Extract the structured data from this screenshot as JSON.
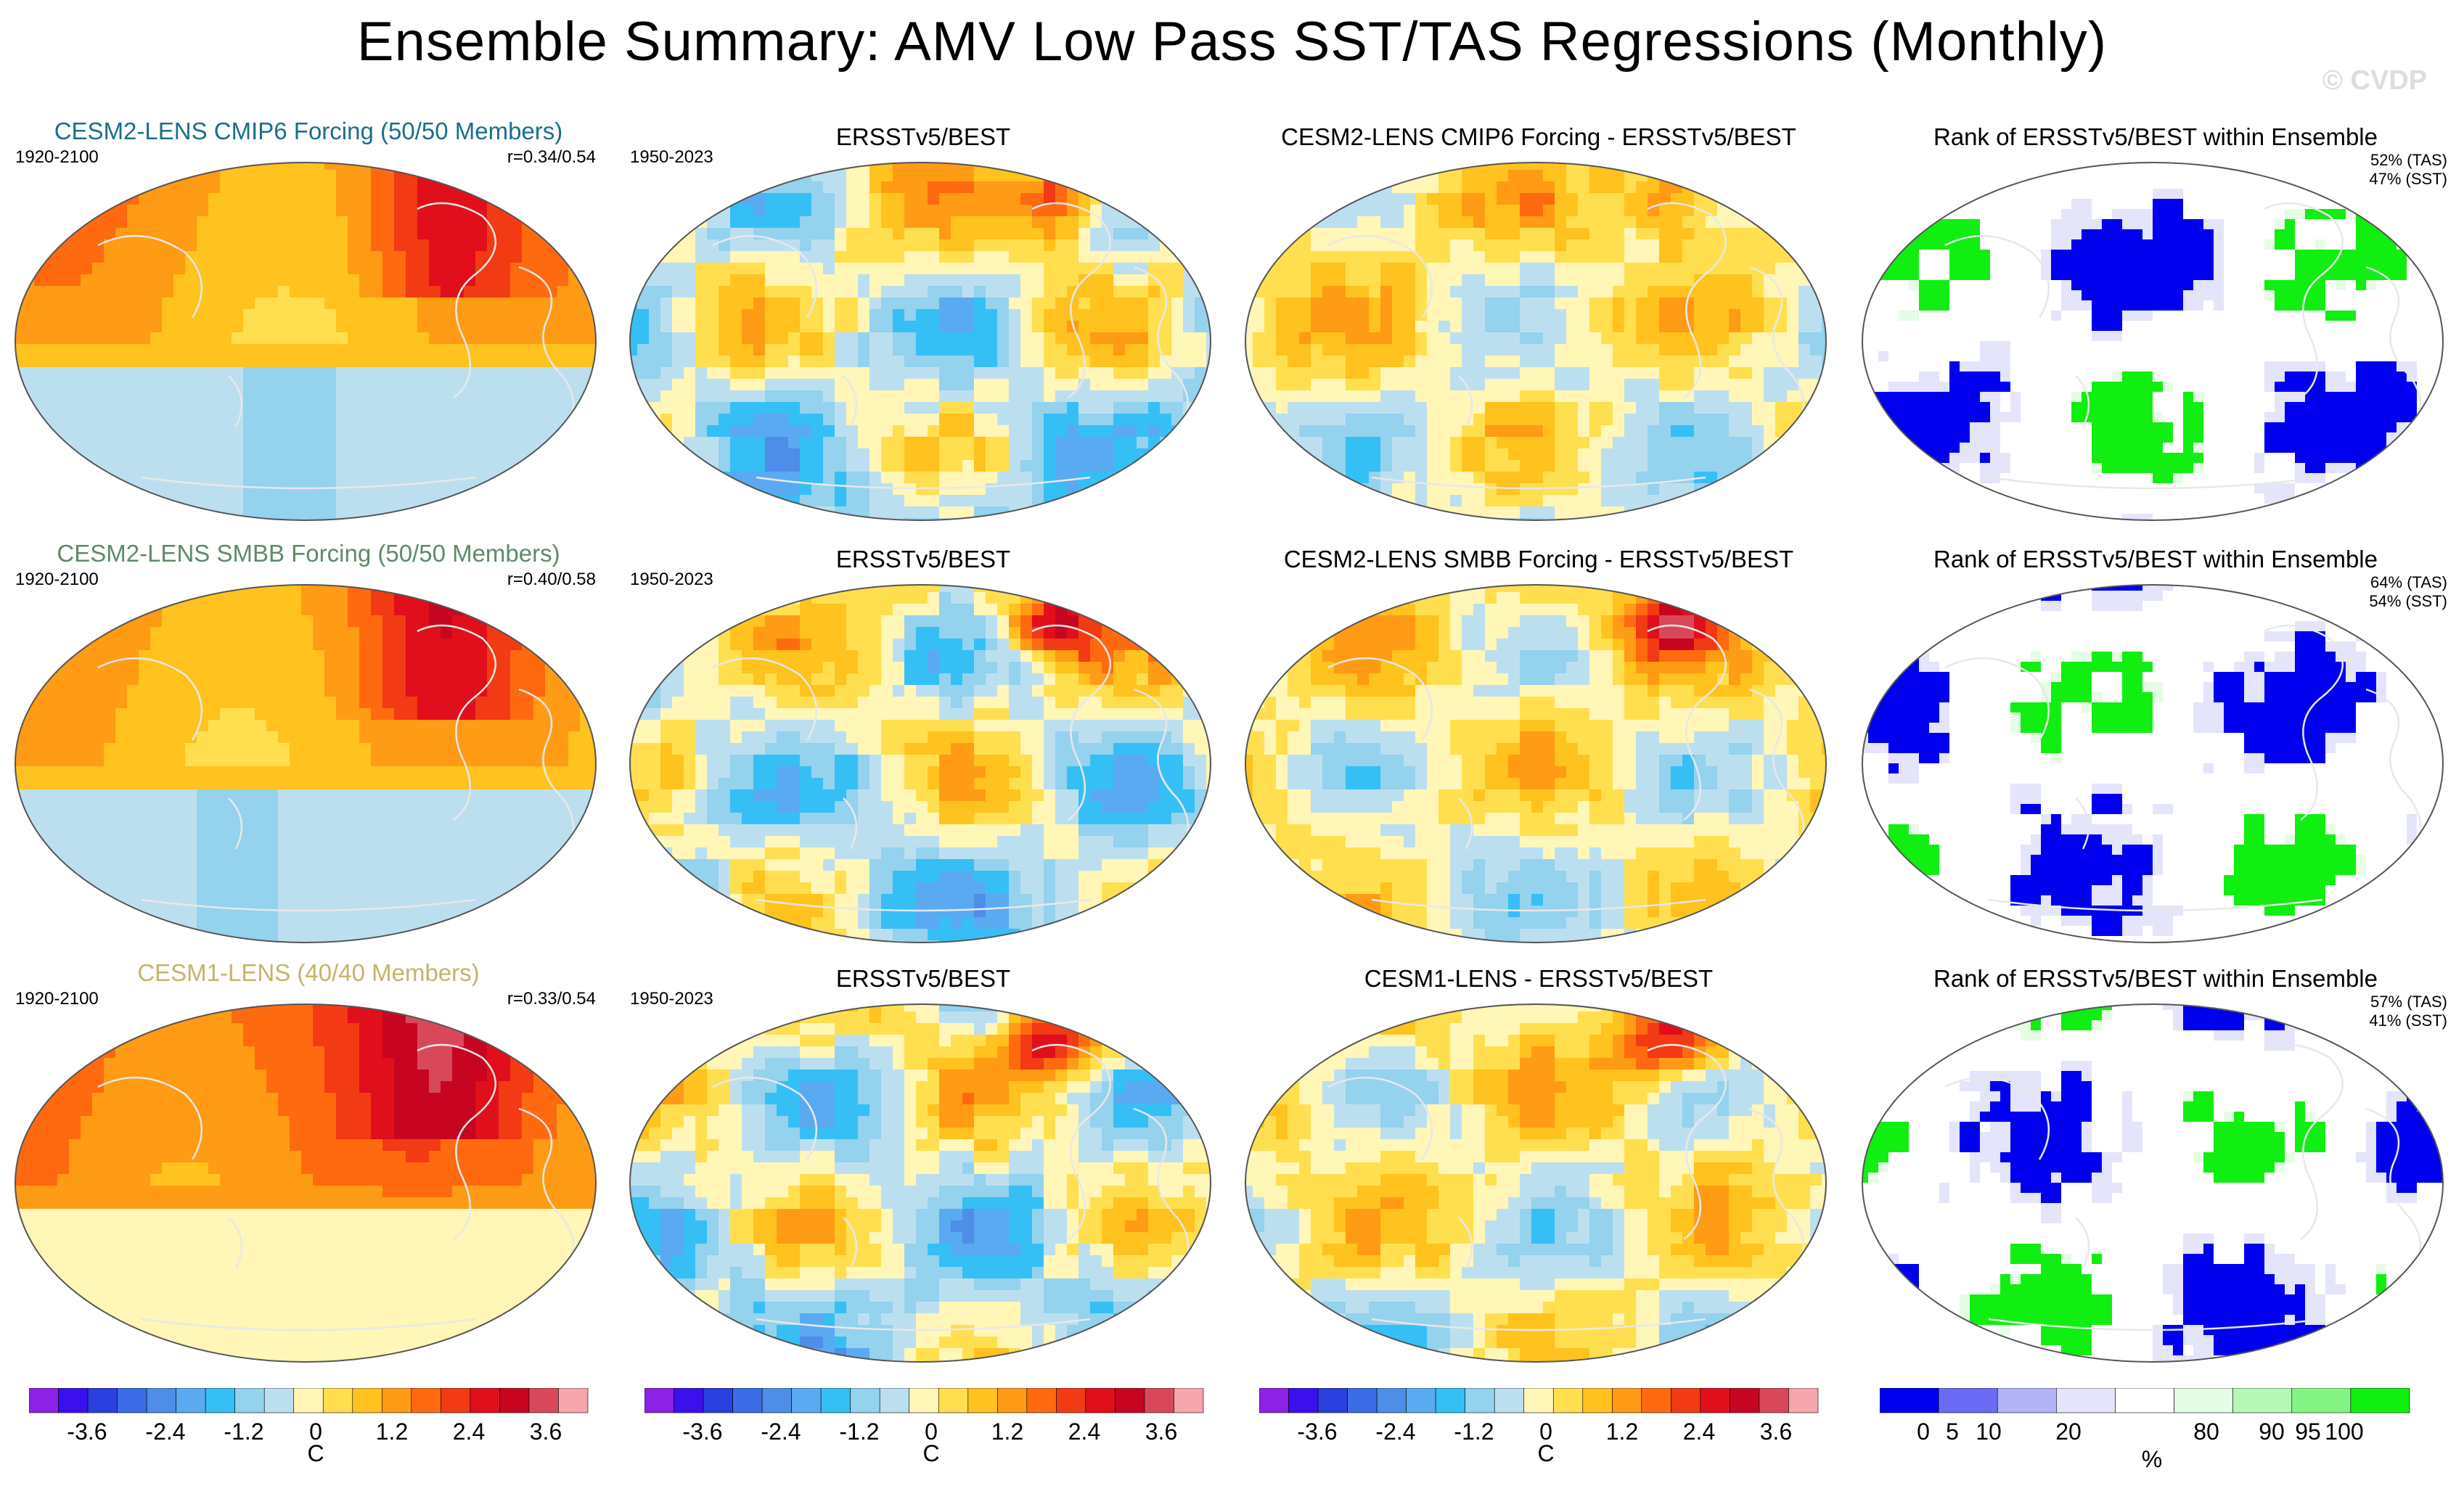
{
  "title": "Ensemble Summary: AMV Low Pass SST/TAS Regressions (Monthly)",
  "watermark": "© CVDP",
  "colors": {
    "regression_palette": [
      "#8c22e6",
      "#3a10ee",
      "#2b3fe0",
      "#3c6de6",
      "#4e8de8",
      "#5aaaf2",
      "#36bff5",
      "#94d2ee",
      "#bcdff0",
      "#fff6b8",
      "#ffdf4f",
      "#ffc21f",
      "#ff9b15",
      "#ff6a11",
      "#f23a14",
      "#e10e1c",
      "#c70520",
      "#d9485a",
      "#f5a5ac"
    ],
    "rank_palette": [
      "#0000ee",
      "#6b6bf5",
      "#b3b3f7",
      "#e4e4fa",
      "#ffffff",
      "#e5fce5",
      "#b6f7b6",
      "#84f584",
      "#11ee11"
    ],
    "model_title": "#1a6f8c",
    "smbb_title": "#5e8a68",
    "cesm1_title": "#c4b46a",
    "coast": "#e8e8e8"
  },
  "rows": [
    {
      "model": {
        "title": "CESM2-LENS CMIP6 Forcing (50/50 Members)",
        "period": "1920-2100",
        "corr": "r=0.34/0.54"
      },
      "obs": {
        "title": "ERSSTv5/BEST",
        "period": "1950-2023"
      },
      "diff": {
        "title": "CESM2-LENS CMIP6 Forcing - ERSSTv5/BEST"
      },
      "rank": {
        "title": "Rank of ERSSTv5/BEST within Ensemble",
        "tas": "52% (TAS)",
        "sst": "47% (SST)"
      }
    },
    {
      "model": {
        "title": "CESM2-LENS SMBB Forcing (50/50 Members)",
        "period": "1920-2100",
        "corr": "r=0.40/0.58"
      },
      "obs": {
        "title": "ERSSTv5/BEST",
        "period": "1950-2023"
      },
      "diff": {
        "title": "CESM2-LENS SMBB Forcing - ERSSTv5/BEST"
      },
      "rank": {
        "title": "Rank of ERSSTv5/BEST within Ensemble",
        "tas": "64% (TAS)",
        "sst": "54% (SST)"
      }
    },
    {
      "model": {
        "title": "CESM1-LENS (40/40 Members)",
        "period": "1920-2100",
        "corr": "r=0.33/0.54"
      },
      "obs": {
        "title": "ERSSTv5/BEST",
        "period": "1950-2023"
      },
      "diff": {
        "title": "CESM1-LENS - ERSSTv5/BEST"
      },
      "rank": {
        "title": "Rank of ERSSTv5/BEST within Ensemble",
        "tas": "57% (TAS)",
        "sst": "41% (SST)"
      }
    }
  ],
  "colorbars": {
    "regression": {
      "labels": [
        "-3.6",
        "-2.4",
        "-1.2",
        "0",
        "1.2",
        "2.4",
        "3.6"
      ],
      "unit": "C"
    },
    "rank": {
      "labels": [
        "0",
        "5",
        "10",
        "20",
        "80",
        "90",
        "95",
        "100"
      ],
      "unit": "%"
    }
  },
  "chart_data": {
    "type": "heatmap",
    "title": "Ensemble Summary: AMV Low Pass SST/TAS Regressions (Monthly)",
    "panels_layout": "3 rows x 4 columns",
    "regression_levels": [
      -4.2,
      -3.9,
      -3.6,
      -3.3,
      -3.0,
      -2.7,
      -2.4,
      -2.1,
      -1.8,
      -1.5,
      -1.2,
      -0.9,
      -0.6,
      -0.3,
      0,
      0.3,
      0.6,
      0.9,
      1.2,
      1.5,
      1.8,
      2.1,
      2.4,
      2.7,
      3.0,
      3.3,
      3.6
    ],
    "rank_levels": [
      0,
      5,
      10,
      20,
      80,
      90,
      95,
      100
    ],
    "colorbar_ticks_regression": [
      -3.6,
      -2.4,
      -1.2,
      0,
      1.2,
      2.4,
      3.6
    ],
    "colorbar_ticks_rank": [
      0,
      5,
      10,
      20,
      80,
      90,
      95,
      100
    ],
    "units": [
      "C",
      "%"
    ]
  }
}
